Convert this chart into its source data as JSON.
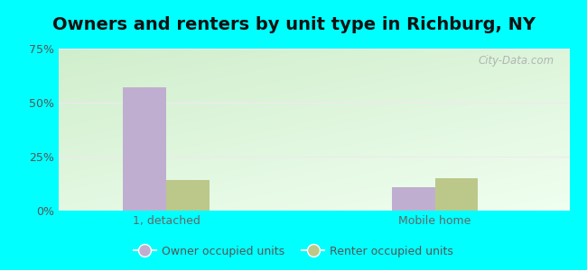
{
  "title": "Owners and renters by unit type in Richburg, NY",
  "categories": [
    "1, detached",
    "Mobile home"
  ],
  "owner_values": [
    57,
    11
  ],
  "renter_values": [
    14,
    15
  ],
  "owner_color": "#c0aed0",
  "renter_color": "#bcc88a",
  "ylim": [
    0,
    75
  ],
  "yticks": [
    0,
    25,
    50,
    75
  ],
  "ytick_labels": [
    "0%",
    "25%",
    "50%",
    "75%"
  ],
  "bar_width": 0.32,
  "group_positions": [
    1.0,
    3.0
  ],
  "outer_bg": "#00ffff",
  "watermark": "City-Data.com",
  "legend_owner": "Owner occupied units",
  "legend_renter": "Renter occupied units",
  "title_fontsize": 14,
  "tick_fontsize": 9,
  "legend_fontsize": 9,
  "xlim": [
    0.2,
    4.0
  ]
}
